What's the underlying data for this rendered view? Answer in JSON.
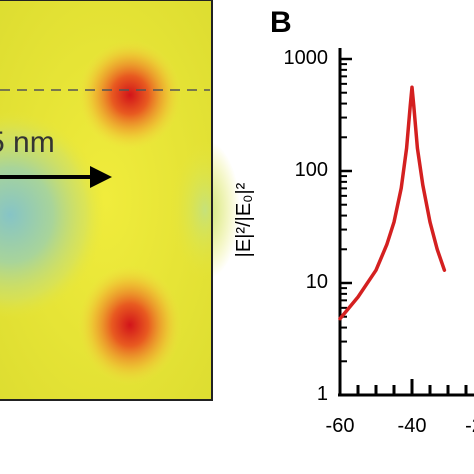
{
  "panel_a": {
    "dimension_label": "5 nm",
    "colors": {
      "background": "#e4e43a",
      "hotspot": "#d41a1a",
      "cool": "#8ac8c8",
      "border": "#222222"
    },
    "dashed_line": true,
    "arrow_direction": "right"
  },
  "chart_data": {
    "type": "line",
    "panel_label": "B",
    "xlabel": "",
    "ylabel": "|E|²/|E₀|²",
    "yscale": "log",
    "ylim": [
      1,
      1000
    ],
    "xlim": [
      -60,
      -30
    ],
    "x_tick_labels": [
      "-60",
      "-40",
      "-2"
    ],
    "y_tick_labels": [
      "1",
      "10",
      "100",
      "1000"
    ],
    "series": [
      {
        "color": "#d42020",
        "x": [
          -60,
          -55,
          -50,
          -47,
          -45,
          -43,
          -41.5,
          -40.5,
          -40,
          -39.5,
          -38.5,
          -37,
          -35,
          -33,
          -31
        ],
        "y": [
          4.8,
          7.5,
          13,
          22,
          35,
          70,
          160,
          380,
          560,
          380,
          160,
          75,
          35,
          20,
          13
        ]
      }
    ],
    "grid": false
  }
}
